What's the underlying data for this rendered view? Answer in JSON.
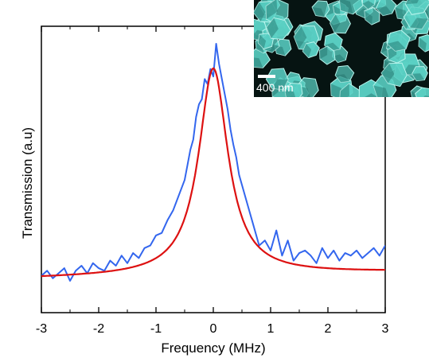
{
  "chart_data": {
    "type": "line",
    "title": "",
    "xlabel": "Frequency (MHz)",
    "ylabel": "Transmission (a.u)",
    "xlim": [
      -3,
      3
    ],
    "ylim": [
      0,
      1
    ],
    "xticks": [
      -3,
      -2,
      -1,
      0,
      1,
      2,
      3
    ],
    "xtick_labels": [
      "-3",
      "-2",
      "-1",
      "0",
      "1",
      "2",
      "3"
    ],
    "grid": false,
    "legend": "none",
    "series": [
      {
        "style": "noisy-data",
        "color": "#3366ee",
        "x": [
          -3.0,
          -2.9,
          -2.8,
          -2.7,
          -2.6,
          -2.5,
          -2.4,
          -2.3,
          -2.2,
          -2.1,
          -2.0,
          -1.9,
          -1.8,
          -1.7,
          -1.6,
          -1.5,
          -1.4,
          -1.3,
          -1.2,
          -1.1,
          -1.0,
          -0.9,
          -0.8,
          -0.7,
          -0.6,
          -0.5,
          -0.45,
          -0.4,
          -0.35,
          -0.3,
          -0.25,
          -0.2,
          -0.15,
          -0.1,
          -0.05,
          0.0,
          0.05,
          0.1,
          0.15,
          0.2,
          0.25,
          0.3,
          0.35,
          0.4,
          0.45,
          0.5,
          0.6,
          0.7,
          0.8,
          0.9,
          1.0,
          1.1,
          1.2,
          1.3,
          1.4,
          1.5,
          1.6,
          1.7,
          1.8,
          1.9,
          2.0,
          2.1,
          2.2,
          2.3,
          2.4,
          2.5,
          2.6,
          2.7,
          2.8,
          2.9,
          3.0
        ],
        "y": [
          0.08,
          0.1,
          0.07,
          0.09,
          0.11,
          0.06,
          0.1,
          0.12,
          0.09,
          0.13,
          0.11,
          0.1,
          0.14,
          0.12,
          0.16,
          0.13,
          0.17,
          0.15,
          0.19,
          0.2,
          0.24,
          0.25,
          0.3,
          0.34,
          0.4,
          0.46,
          0.52,
          0.58,
          0.62,
          0.71,
          0.76,
          0.78,
          0.86,
          0.84,
          0.9,
          0.87,
          1.0,
          0.92,
          0.86,
          0.8,
          0.74,
          0.66,
          0.6,
          0.55,
          0.48,
          0.44,
          0.36,
          0.28,
          0.2,
          0.22,
          0.18,
          0.26,
          0.16,
          0.22,
          0.14,
          0.17,
          0.18,
          0.16,
          0.13,
          0.19,
          0.15,
          0.18,
          0.14,
          0.17,
          0.16,
          0.18,
          0.15,
          0.17,
          0.19,
          0.16,
          0.2
        ]
      },
      {
        "style": "lorentzian-fit",
        "color": "#dd1111",
        "center": 0.0,
        "fwhm": 0.62,
        "amplitude": 0.82,
        "offset": 0.07,
        "baseline_slope": 0.0083
      }
    ]
  },
  "inset": {
    "scale_label": "400 nm",
    "tint": "#5ad0c4",
    "background": "#061412"
  }
}
